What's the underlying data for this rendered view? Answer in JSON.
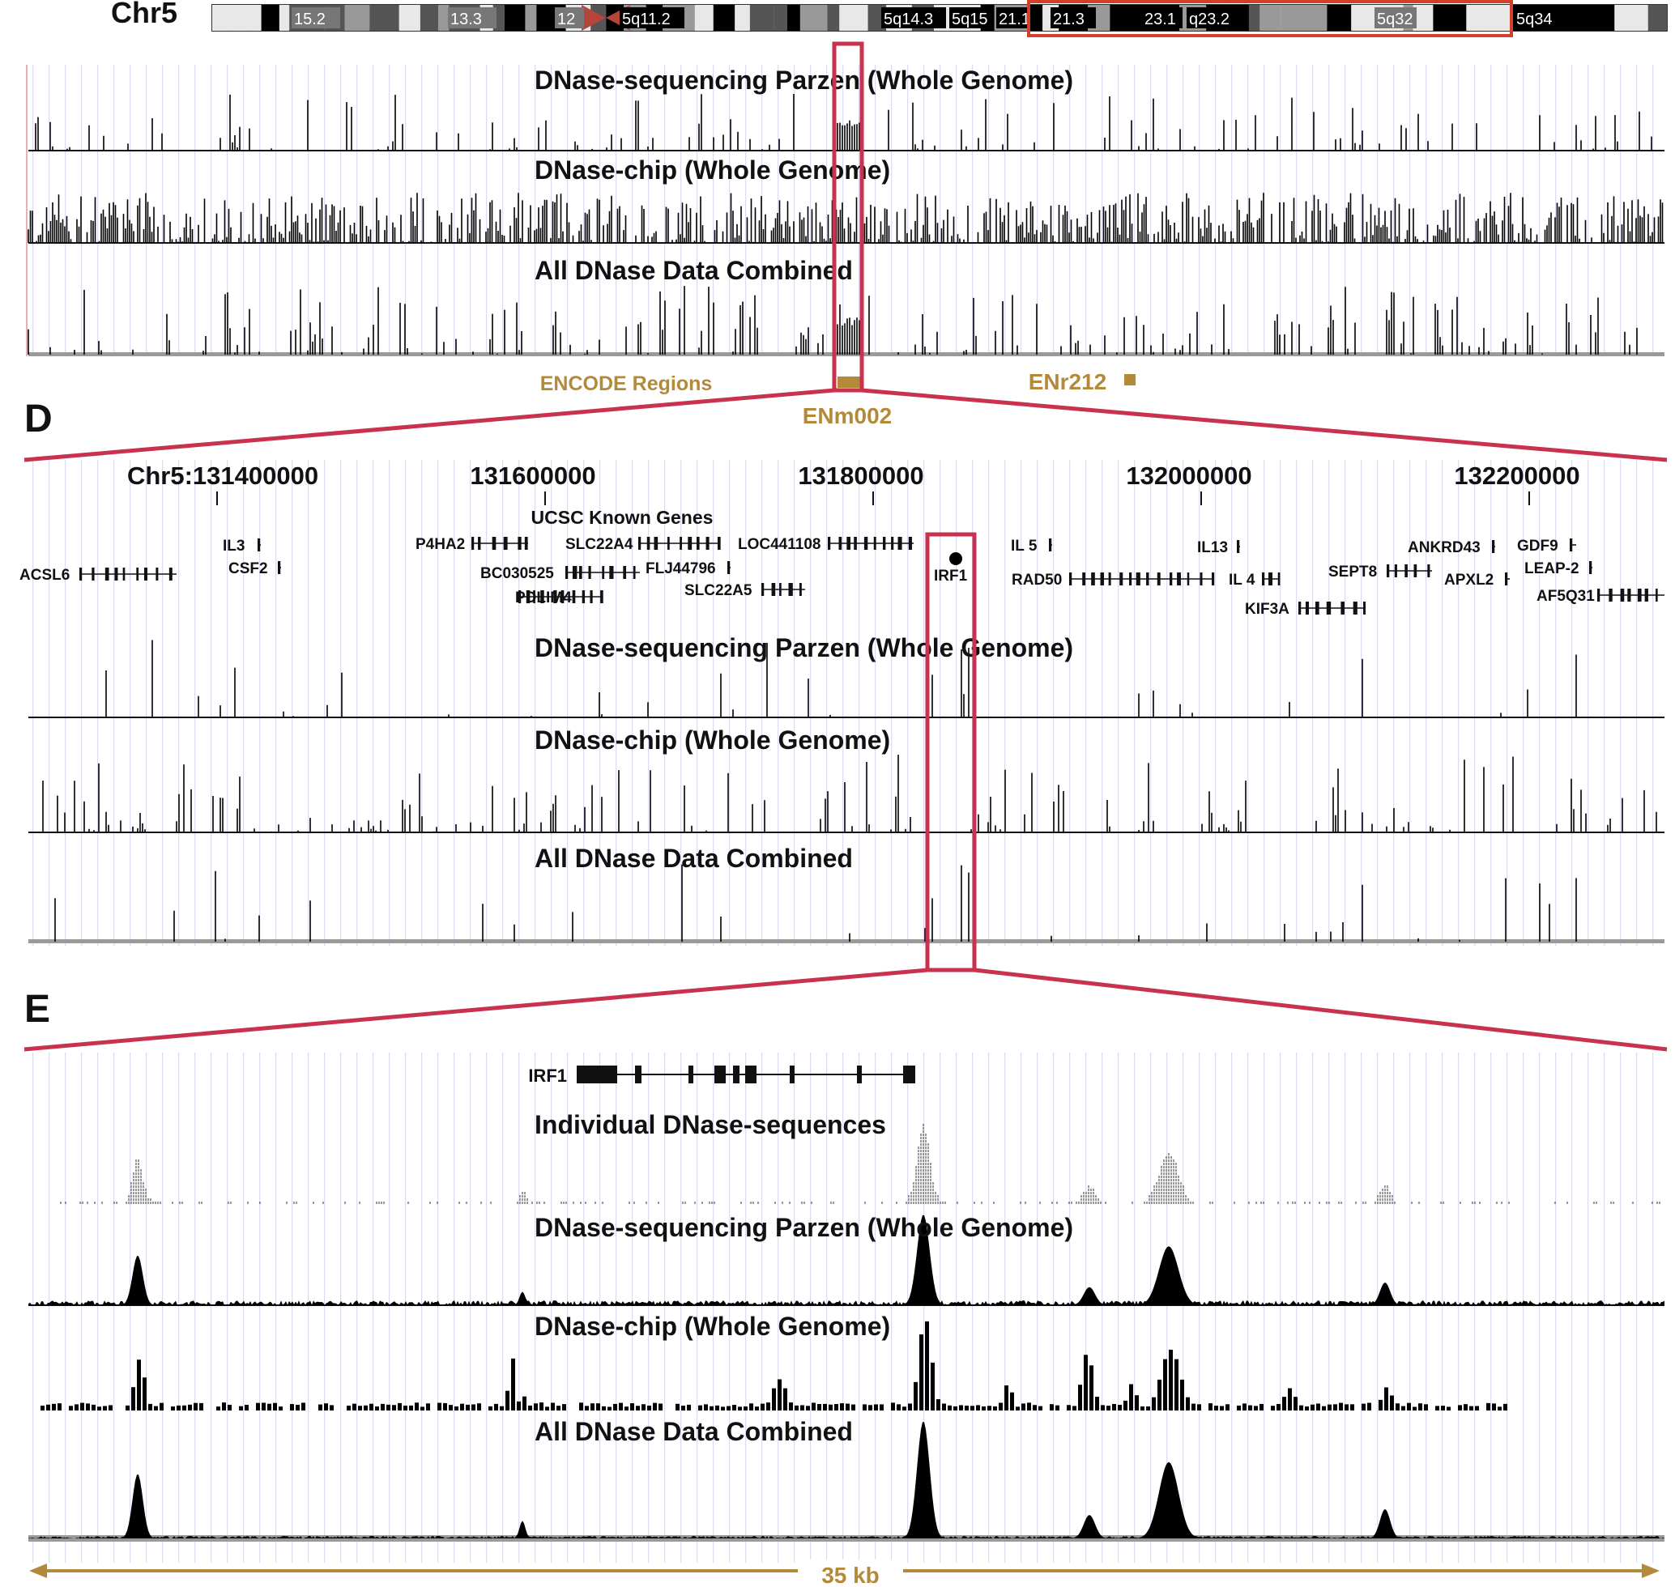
{
  "colors": {
    "highlight": "#c8324f",
    "ideogram_box": "#d0402a",
    "encode": "#b38a3a",
    "signal": "#000000",
    "baseline": "#9a9a9a",
    "grid": "#dcdcf0"
  },
  "ideogram": {
    "label": "Chr5",
    "bands": [
      {
        "name": "15.2",
        "dark": false
      },
      {
        "name": "13.3",
        "dark": false
      },
      {
        "name": "12",
        "dark": false
      },
      {
        "name": "5q11.2",
        "dark": true
      },
      {
        "name": "5q14.3",
        "dark": true
      },
      {
        "name": "5q15",
        "dark": true
      },
      {
        "name": "21.1",
        "dark": true
      },
      {
        "name": "21.3",
        "dark": true
      },
      {
        "name": "23.1",
        "dark": true
      },
      {
        "name": "q23.2",
        "dark": true
      },
      {
        "name": "5q32",
        "dark": false
      },
      {
        "name": "5q34",
        "dark": true
      }
    ]
  },
  "panel_c": {
    "tracks": [
      {
        "title": "DNase-sequencing Parzen (Whole Genome)"
      },
      {
        "title": "DNase-chip (Whole Genome)"
      },
      {
        "title": "All DNase Data Combined"
      }
    ],
    "encode_title": "ENCODE Regions",
    "encode_regions": [
      "ENm002",
      "ENr212"
    ]
  },
  "panel_d": {
    "letter": "D",
    "coords": [
      "Chr5:131400000",
      "131600000",
      "131800000",
      "132000000",
      "132200000"
    ],
    "genes_title": "UCSC Known Genes",
    "genes": [
      "ACSL6",
      "IL3",
      "CSF2",
      "P4HA2",
      "BC030525",
      "PDLIM4",
      "SLC22A4",
      "FLJ44796",
      "SLC22A5",
      "LOC441108",
      "IRF1",
      "IL 5",
      "RAD50",
      "IL13",
      "IL 4",
      "KIF3A",
      "SEPT8",
      "ANKRD43",
      "APXL2",
      "GDF9",
      "LEAP-2",
      "AF5Q31"
    ],
    "tracks": [
      {
        "title": "DNase-sequencing Parzen (Whole Genome)"
      },
      {
        "title": "DNase-chip (Whole Genome)"
      },
      {
        "title": "All DNase Data Combined"
      }
    ]
  },
  "panel_e": {
    "letter": "E",
    "gene": "IRF1",
    "tracks": [
      {
        "title": "Individual DNase-sequences"
      },
      {
        "title": "DNase-sequencing Parzen (Whole Genome)"
      },
      {
        "title": "DNase-chip (Whole Genome)"
      },
      {
        "title": "All DNase Data Combined"
      }
    ],
    "scale_label": "35 kb"
  }
}
